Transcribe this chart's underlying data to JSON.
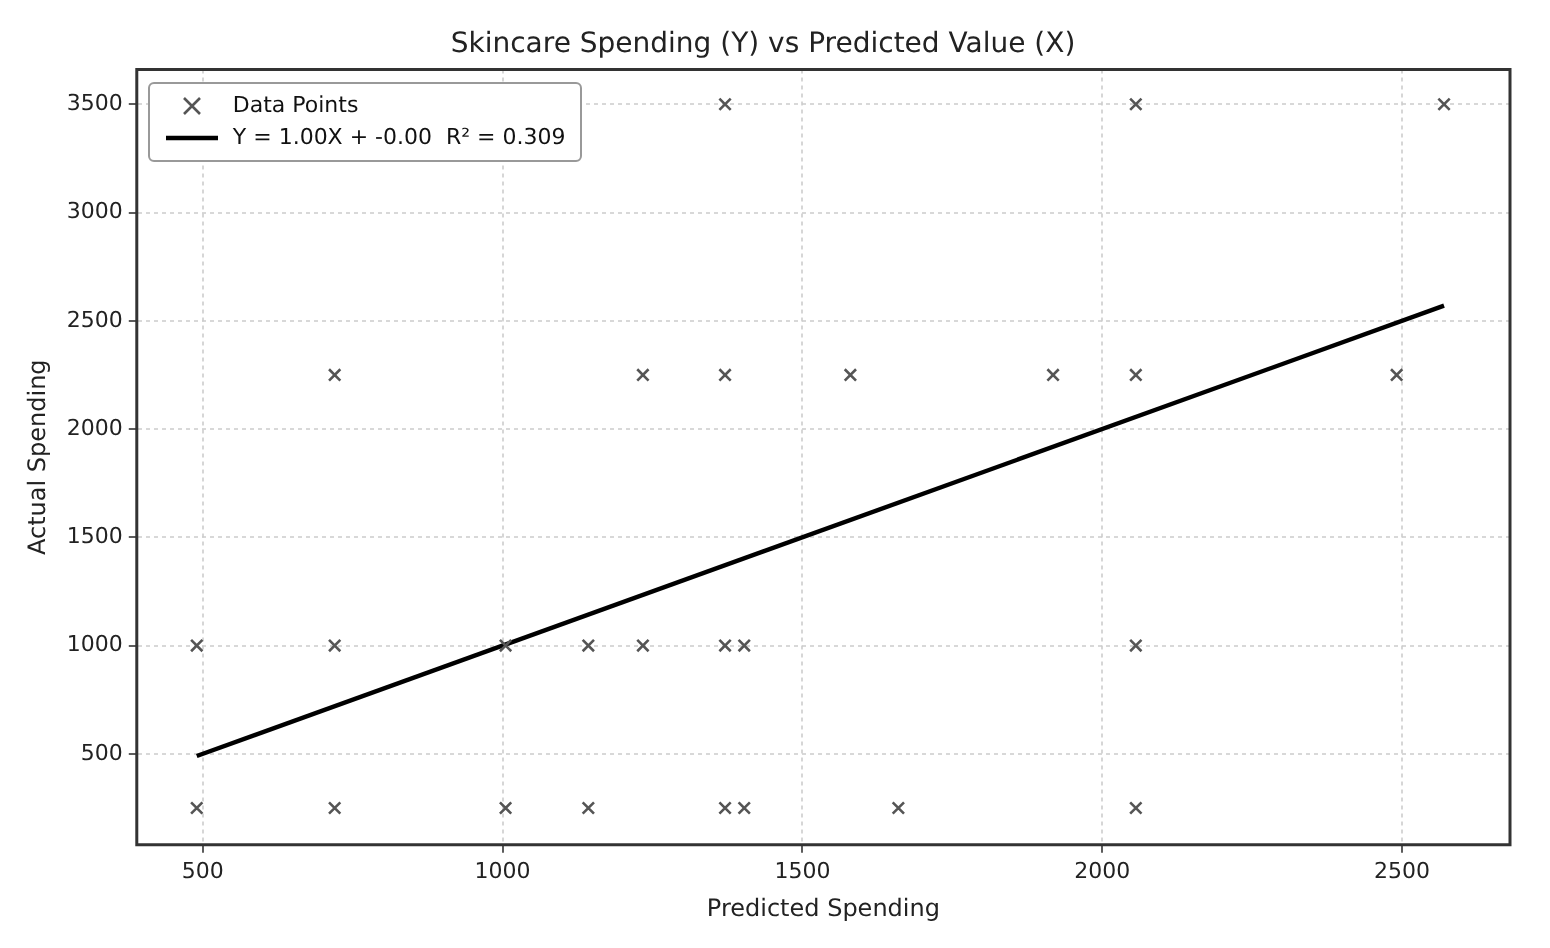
{
  "chart_data": {
    "type": "scatter",
    "title": "Skincare Spending (Y) vs Predicted Value (X)",
    "xlabel": "Predicted Spending",
    "ylabel": "Actual Spending",
    "xlim": [
      390,
      2680
    ],
    "ylim": [
      80,
      3660
    ],
    "xticks": [
      500,
      1000,
      1500,
      2000,
      2500
    ],
    "yticks": [
      500,
      1000,
      1500,
      2000,
      2500,
      3000,
      3500
    ],
    "grid": true,
    "legend": "top left",
    "marker": "cross",
    "series": [
      {
        "name": "Data Points",
        "color": "#555555",
        "x": [
          490,
          490,
          720,
          720,
          720,
          1005,
          1005,
          1143,
          1143,
          1234,
          1234,
          1371,
          1371,
          1371,
          1371,
          1403,
          1403,
          1580,
          1660,
          1918,
          2056,
          2056,
          2056,
          2056,
          2491,
          2570
        ],
        "values": [
          250,
          1000,
          250,
          1000,
          2250,
          250,
          1000,
          250,
          1000,
          1000,
          2250,
          250,
          1000,
          2250,
          3500,
          250,
          1000,
          2250,
          250,
          2250,
          250,
          1000,
          2250,
          3500,
          2250,
          3500
        ]
      },
      {
        "name": "Y = 1.00X + -0.00  R² = 0.309",
        "type": "line",
        "line_style": "solid",
        "marker": "none",
        "color": "#000000",
        "x": [
          490,
          2570
        ],
        "values": [
          490,
          2570
        ]
      }
    ]
  }
}
